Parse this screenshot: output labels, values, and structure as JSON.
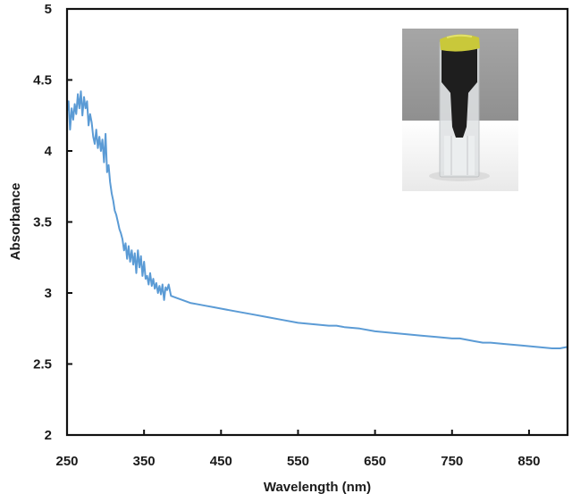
{
  "chart_data": {
    "type": "line",
    "title": "",
    "xlabel": "Wavelength (nm)",
    "ylabel": "Absorbance",
    "xlim": [
      250,
      900
    ],
    "ylim": [
      2,
      5
    ],
    "xticks": [
      250,
      350,
      450,
      550,
      650,
      750,
      850
    ],
    "yticks": [
      2,
      2.5,
      3,
      3.5,
      4,
      4.5,
      5
    ],
    "xtick_labels": [
      "250",
      "350",
      "450",
      "550",
      "650",
      "750",
      "850"
    ],
    "ytick_labels": [
      "2",
      "2.5",
      "3",
      "3.5",
      "4",
      "4.5",
      "5"
    ],
    "grid": false,
    "legend": null,
    "line_color": "#5b9bd5",
    "series": [
      {
        "name": "Absorbance",
        "x": [
          250,
          252,
          254,
          256,
          258,
          260,
          262,
          264,
          266,
          268,
          270,
          272,
          274,
          276,
          278,
          280,
          282,
          284,
          286,
          288,
          290,
          292,
          294,
          296,
          298,
          300,
          302,
          304,
          306,
          308,
          310,
          312,
          314,
          316,
          318,
          320,
          322,
          324,
          326,
          328,
          330,
          332,
          334,
          336,
          338,
          340,
          342,
          344,
          346,
          348,
          350,
          352,
          354,
          356,
          358,
          360,
          362,
          364,
          366,
          368,
          370,
          372,
          374,
          376,
          378,
          380,
          382,
          385,
          390,
          400,
          410,
          420,
          430,
          440,
          450,
          470,
          490,
          510,
          530,
          550,
          570,
          590,
          600,
          610,
          630,
          650,
          670,
          690,
          710,
          730,
          750,
          760,
          770,
          780,
          790,
          800,
          820,
          840,
          860,
          880,
          890,
          900
        ],
        "y": [
          4.28,
          4.35,
          4.15,
          4.3,
          4.22,
          4.33,
          4.26,
          4.4,
          4.3,
          4.42,
          4.25,
          4.38,
          4.3,
          4.35,
          4.18,
          4.26,
          4.2,
          4.1,
          4.05,
          4.15,
          4.02,
          4.1,
          4.0,
          4.08,
          3.92,
          4.12,
          3.85,
          3.9,
          3.78,
          3.7,
          3.65,
          3.58,
          3.55,
          3.5,
          3.45,
          3.42,
          3.38,
          3.3,
          3.35,
          3.24,
          3.33,
          3.22,
          3.3,
          3.2,
          3.28,
          3.14,
          3.3,
          3.18,
          3.26,
          3.12,
          3.22,
          3.1,
          3.12,
          3.06,
          3.14,
          3.05,
          3.1,
          3.03,
          3.07,
          3.0,
          3.05,
          2.99,
          3.06,
          2.95,
          3.04,
          3.02,
          3.06,
          2.98,
          2.97,
          2.95,
          2.93,
          2.92,
          2.91,
          2.9,
          2.89,
          2.87,
          2.85,
          2.83,
          2.81,
          2.79,
          2.78,
          2.77,
          2.77,
          2.76,
          2.75,
          2.73,
          2.72,
          2.71,
          2.7,
          2.69,
          2.68,
          2.68,
          2.67,
          2.66,
          2.65,
          2.65,
          2.64,
          2.63,
          2.62,
          2.61,
          2.61,
          2.62
        ]
      }
    ],
    "annotations": [
      {
        "type": "inset-photo",
        "description": "Cuvette with dark sample and yellow cap",
        "position": "top-right"
      }
    ]
  },
  "inset": {
    "label": "cuvette-photo",
    "colors": {
      "background_wall": "#9c9c9c",
      "table": "#f2f2f2",
      "cap": "#c9c83a",
      "sample": "#1e1e1e",
      "glass": "#dfe2e4"
    }
  }
}
